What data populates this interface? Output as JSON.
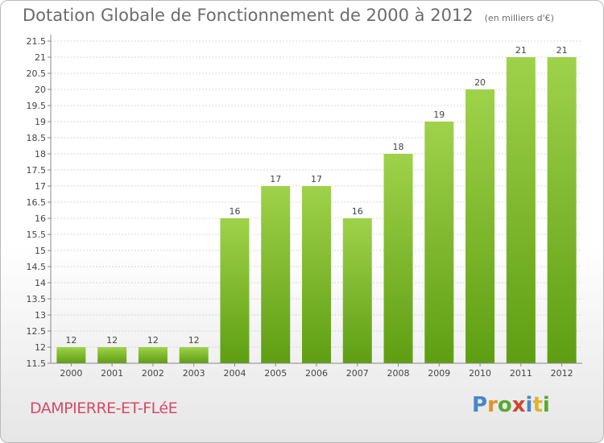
{
  "chart_data": {
    "type": "bar",
    "title": "Dotation Globale de Fonctionnement de 2000 à 2012",
    "subtitle": "(en milliers d'€)",
    "categories": [
      "2000",
      "2001",
      "2002",
      "2003",
      "2004",
      "2005",
      "2006",
      "2007",
      "2008",
      "2009",
      "2010",
      "2011",
      "2012"
    ],
    "values": [
      12,
      12,
      12,
      12,
      16,
      17,
      17,
      16,
      18,
      19,
      20,
      21,
      21
    ],
    "ylim": [
      11.5,
      21.5
    ],
    "yticks": [
      "11.5",
      "12",
      "12.5",
      "13",
      "13.5",
      "14",
      "14.5",
      "15",
      "15.5",
      "16",
      "16.5",
      "17",
      "17.5",
      "18",
      "18.5",
      "19",
      "19.5",
      "20",
      "20.5",
      "21",
      "21.5"
    ],
    "bar_color_top": "#9fd24a",
    "bar_color_bottom": "#5e9e12"
  },
  "footer": {
    "commune": "DAMPIERRE-ET-FLéE",
    "logo_letters": [
      {
        "ch": "P",
        "color": "#4a86c8"
      },
      {
        "ch": "r",
        "color": "#e0932a"
      },
      {
        "ch": "o",
        "color": "#5aa832"
      },
      {
        "ch": "x",
        "color": "#d2452f"
      },
      {
        "ch": "i",
        "color": "#4a86c8"
      },
      {
        "ch": "t",
        "color": "#e0b32a"
      },
      {
        "ch": "i",
        "color": "#5aa832"
      }
    ]
  }
}
